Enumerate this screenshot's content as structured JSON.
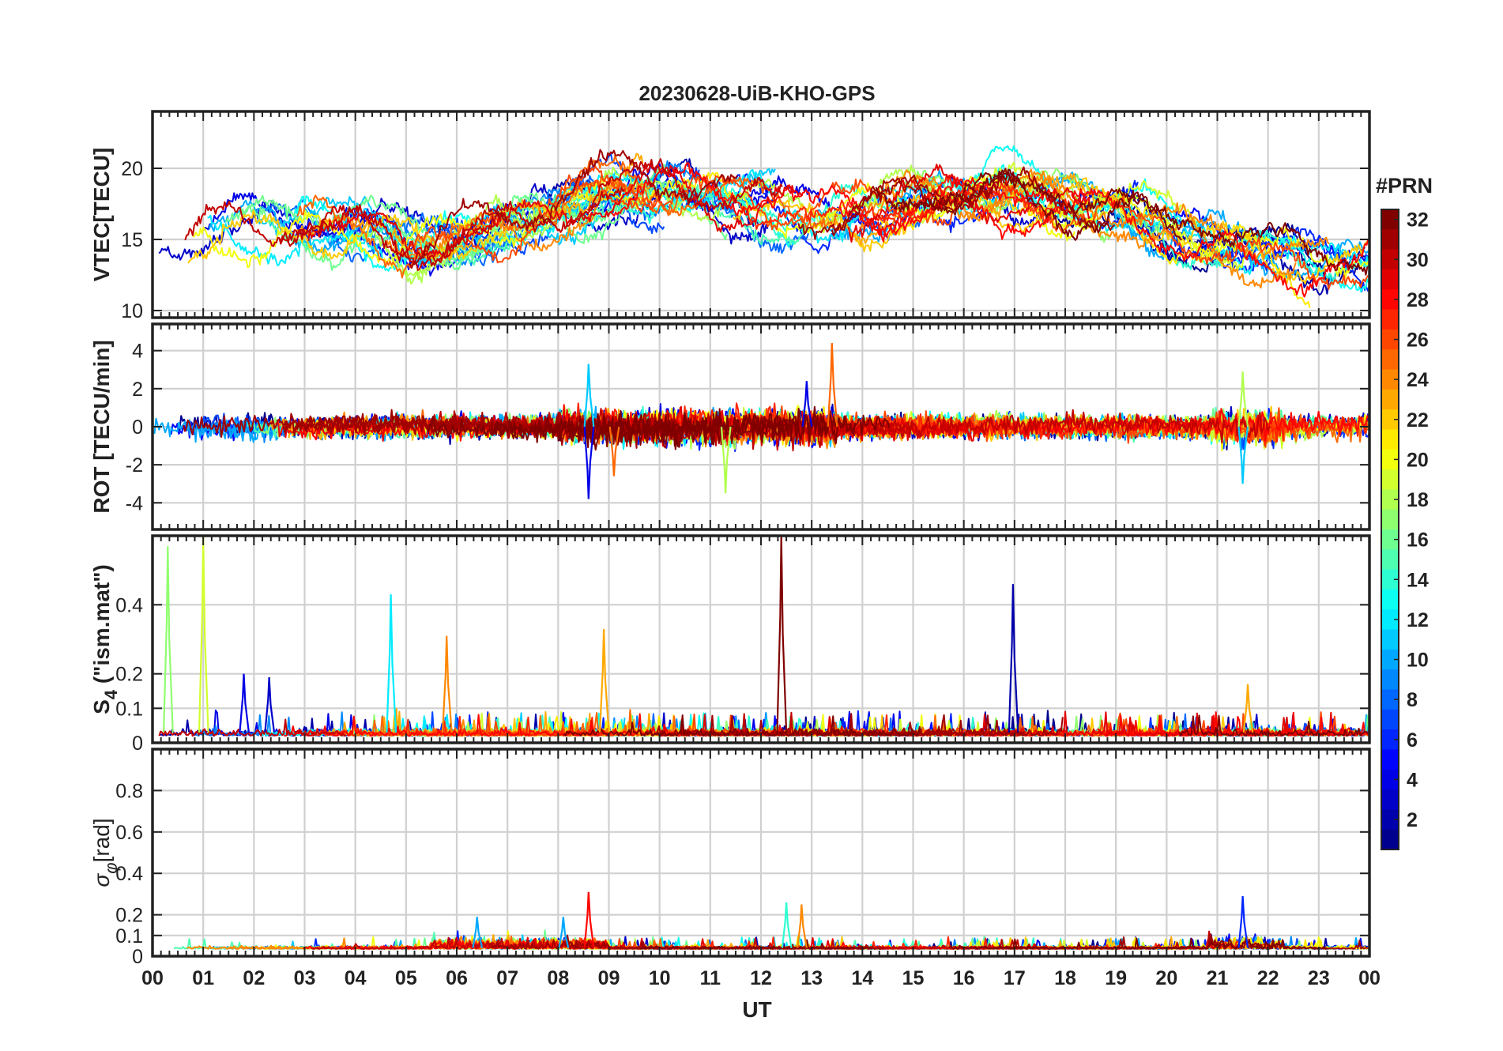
{
  "title": "20230628-UiB-KHO-GPS",
  "xlabel": "UT",
  "x_tick_labels": [
    "00",
    "01",
    "02",
    "03",
    "04",
    "05",
    "06",
    "07",
    "08",
    "09",
    "10",
    "11",
    "12",
    "13",
    "14",
    "15",
    "16",
    "17",
    "18",
    "19",
    "20",
    "21",
    "22",
    "23",
    "00"
  ],
  "colorbar": {
    "title": "#PRN",
    "range": [
      1,
      32
    ],
    "tick_labels": [
      "2",
      "4",
      "6",
      "8",
      "10",
      "12",
      "14",
      "16",
      "18",
      "20",
      "22",
      "24",
      "26",
      "28",
      "30",
      "32"
    ],
    "colormap": [
      "#00008f",
      "#0000ff",
      "#0080ff",
      "#00ffff",
      "#80ff80",
      "#ffff00",
      "#ff8000",
      "#ff0000",
      "#800000"
    ]
  },
  "chart_data": [
    {
      "type": "line",
      "panel": "vtec",
      "ylabel": "VTEC[TECU]",
      "xlim": [
        0,
        24
      ],
      "ylim": [
        9.5,
        24
      ],
      "yticks": [
        10,
        15,
        20
      ],
      "ytick_labels": [
        "10",
        "15",
        "20"
      ],
      "series_note": "one trace per GPS satellite PRN 1-32, coloured by PRN",
      "envelope": {
        "x": [
          0,
          1,
          2,
          3,
          4,
          5,
          6,
          7,
          8,
          9,
          10,
          11,
          12,
          13,
          14,
          15,
          16,
          17,
          18,
          19,
          20,
          21,
          22,
          23,
          24
        ],
        "typical": [
          14,
          15.5,
          16,
          16.5,
          15.5,
          14.5,
          15,
          16,
          17,
          18,
          18.5,
          18,
          17.5,
          16.5,
          16.8,
          17.5,
          17.8,
          18,
          17.5,
          17,
          15.5,
          15,
          14,
          13,
          13.5
        ]
      }
    },
    {
      "type": "line",
      "panel": "rot",
      "ylabel": "ROT [TECU/min]",
      "xlim": [
        0,
        24
      ],
      "ylim": [
        -5.4,
        5.4
      ],
      "yticks": [
        -4,
        -2,
        0,
        2,
        4
      ],
      "ytick_labels": [
        "-4",
        "-2",
        "0",
        "2",
        "4"
      ],
      "peaks": [
        {
          "x": 8.6,
          "y": -3.8
        },
        {
          "x": 8.6,
          "y": 3.3
        },
        {
          "x": 11.3,
          "y": -3.5
        },
        {
          "x": 13.4,
          "y": 4.4
        },
        {
          "x": 12.9,
          "y": 2.4
        },
        {
          "x": 21.5,
          "y": -3.0
        },
        {
          "x": 21.5,
          "y": 2.9
        },
        {
          "x": 9.1,
          "y": -2.6
        }
      ]
    },
    {
      "type": "line",
      "panel": "s4",
      "ylabel": "S4 (\"ism.mat\")",
      "ylabel_main": "S",
      "ylabel_sub": "4",
      "ylabel_rest": " (\"ism.mat\")",
      "xlim": [
        0,
        24
      ],
      "ylim": [
        0,
        0.6
      ],
      "yticks": [
        0,
        0.1,
        0.2,
        0.4
      ],
      "ytick_labels": [
        "0",
        "0.1",
        "0.2",
        "0.4"
      ],
      "peaks": [
        {
          "x": 0.3,
          "y": 0.57,
          "prn": 17
        },
        {
          "x": 1.0,
          "y": 0.6,
          "prn": 19
        },
        {
          "x": 4.7,
          "y": 0.43,
          "prn": 12
        },
        {
          "x": 5.8,
          "y": 0.31,
          "prn": 24
        },
        {
          "x": 8.9,
          "y": 0.33,
          "prn": 23
        },
        {
          "x": 12.4,
          "y": 0.6,
          "prn": 32
        },
        {
          "x": 16.97,
          "y": 0.46,
          "prn": 2
        },
        {
          "x": 1.8,
          "y": 0.2,
          "prn": 4
        },
        {
          "x": 2.3,
          "y": 0.19,
          "prn": 3
        },
        {
          "x": 21.6,
          "y": 0.17,
          "prn": 23
        }
      ]
    },
    {
      "type": "line",
      "panel": "sigma_phi",
      "ylabel": "σφ[rad]",
      "ylabel_main": "σ",
      "ylabel_sub": "φ",
      "ylabel_rest": "[rad]",
      "xlim": [
        0,
        24
      ],
      "ylim": [
        0,
        1
      ],
      "yticks": [
        0,
        0.1,
        0.2,
        0.4,
        0.6,
        0.8
      ],
      "ytick_labels": [
        "0",
        "0.1",
        "0.2",
        "0.4",
        "0.6",
        "0.8"
      ],
      "peaks": [
        {
          "x": 8.6,
          "y": 0.31,
          "prn": 28
        },
        {
          "x": 21.5,
          "y": 0.29,
          "prn": 6
        },
        {
          "x": 12.5,
          "y": 0.26,
          "prn": 14
        },
        {
          "x": 12.8,
          "y": 0.25,
          "prn": 24
        },
        {
          "x": 8.1,
          "y": 0.19,
          "prn": 10
        },
        {
          "x": 6.4,
          "y": 0.19,
          "prn": 10
        }
      ]
    }
  ]
}
